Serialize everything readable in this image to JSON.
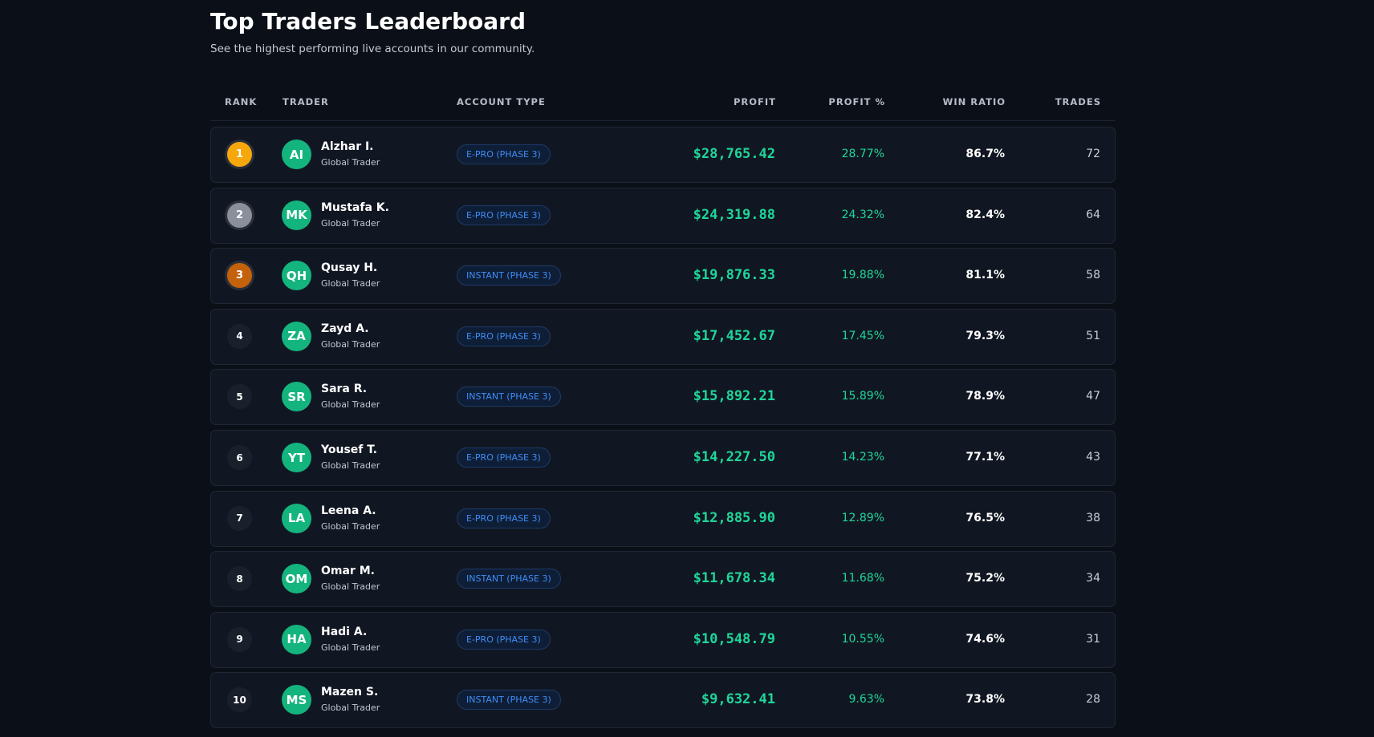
{
  "header": {
    "title": "Top Traders Leaderboard",
    "subtitle": "See the highest performing live accounts in our community."
  },
  "table": {
    "columns": [
      "RANK",
      "TRADER",
      "ACCOUNT TYPE",
      "PROFIT",
      "PROFIT %",
      "WIN RATIO",
      "TRADES"
    ],
    "rows": [
      {
        "rank": "1",
        "initials": "AI",
        "name": "Alzhar I.",
        "subtitle": "Global Trader",
        "account_type": "E-PRO (PHASE 3)",
        "profit": "$28,765.42",
        "profit_pct": "28.77%",
        "win_ratio": "86.7%",
        "trades": "72"
      },
      {
        "rank": "2",
        "initials": "MK",
        "name": "Mustafa K.",
        "subtitle": "Global Trader",
        "account_type": "E-PRO (PHASE 3)",
        "profit": "$24,319.88",
        "profit_pct": "24.32%",
        "win_ratio": "82.4%",
        "trades": "64"
      },
      {
        "rank": "3",
        "initials": "QH",
        "name": "Qusay H.",
        "subtitle": "Global Trader",
        "account_type": "INSTANT (PHASE 3)",
        "profit": "$19,876.33",
        "profit_pct": "19.88%",
        "win_ratio": "81.1%",
        "trades": "58"
      },
      {
        "rank": "4",
        "initials": "ZA",
        "name": "Zayd A.",
        "subtitle": "Global Trader",
        "account_type": "E-PRO (PHASE 3)",
        "profit": "$17,452.67",
        "profit_pct": "17.45%",
        "win_ratio": "79.3%",
        "trades": "51"
      },
      {
        "rank": "5",
        "initials": "SR",
        "name": "Sara R.",
        "subtitle": "Global Trader",
        "account_type": "INSTANT (PHASE 3)",
        "profit": "$15,892.21",
        "profit_pct": "15.89%",
        "win_ratio": "78.9%",
        "trades": "47"
      },
      {
        "rank": "6",
        "initials": "YT",
        "name": "Yousef T.",
        "subtitle": "Global Trader",
        "account_type": "E-PRO (PHASE 3)",
        "profit": "$14,227.50",
        "profit_pct": "14.23%",
        "win_ratio": "77.1%",
        "trades": "43"
      },
      {
        "rank": "7",
        "initials": "LA",
        "name": "Leena A.",
        "subtitle": "Global Trader",
        "account_type": "E-PRO (PHASE 3)",
        "profit": "$12,885.90",
        "profit_pct": "12.89%",
        "win_ratio": "76.5%",
        "trades": "38"
      },
      {
        "rank": "8",
        "initials": "OM",
        "name": "Omar M.",
        "subtitle": "Global Trader",
        "account_type": "INSTANT (PHASE 3)",
        "profit": "$11,678.34",
        "profit_pct": "11.68%",
        "win_ratio": "75.2%",
        "trades": "34"
      },
      {
        "rank": "9",
        "initials": "HA",
        "name": "Hadi A.",
        "subtitle": "Global Trader",
        "account_type": "E-PRO (PHASE 3)",
        "profit": "$10,548.79",
        "profit_pct": "10.55%",
        "win_ratio": "74.6%",
        "trades": "31"
      },
      {
        "rank": "10",
        "initials": "MS",
        "name": "Mazen S.",
        "subtitle": "Global Trader",
        "account_type": "INSTANT (PHASE 3)",
        "profit": "$9,632.41",
        "profit_pct": "9.63%",
        "win_ratio": "73.8%",
        "trades": "28"
      }
    ]
  }
}
